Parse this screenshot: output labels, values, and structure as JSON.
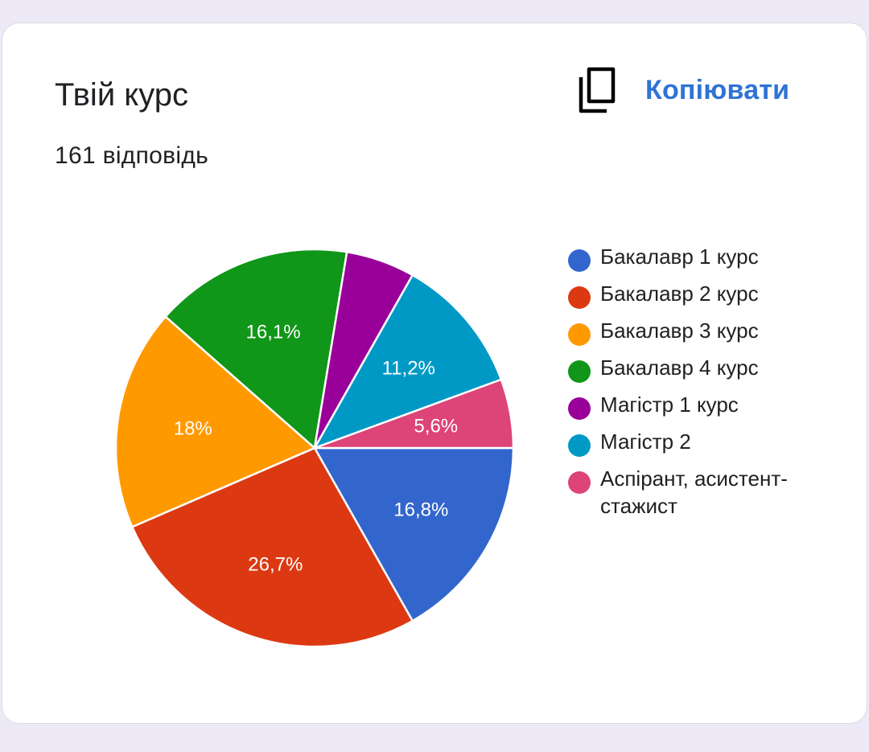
{
  "card": {
    "title": "Твій курс",
    "subtitle": "161 відповідь",
    "copy_label": "Копіювати",
    "copy_icon": "copy-icon"
  },
  "colors": {
    "accent": "#2f73d6",
    "background": "#ede9f7",
    "card": "#ffffff"
  },
  "chart_data": {
    "type": "pie",
    "title": "Твій курс",
    "subtitle": "161 відповідь",
    "legend_position": "right",
    "slices": [
      {
        "label": "Бакалавр 1 курс",
        "value": 16.8,
        "display": "16,8%",
        "color": "#3366cc"
      },
      {
        "label": "Бакалавр 2 курс",
        "value": 26.7,
        "display": "26,7%",
        "color": "#dc3912"
      },
      {
        "label": "Бакалавр 3 курс",
        "value": 18.0,
        "display": "18%",
        "color": "#ff9900"
      },
      {
        "label": "Бакалавр 4 курс",
        "value": 16.1,
        "display": "16,1%",
        "color": "#109618"
      },
      {
        "label": "Магістр 1 курс",
        "value": 5.6,
        "display": "",
        "color": "#990099"
      },
      {
        "label": "Магістр 2",
        "value": 11.2,
        "display": "11,2%",
        "color": "#0099c6"
      },
      {
        "label": "Аспірант, асистент-стажист",
        "value": 5.6,
        "display": "5,6%",
        "color": "#dd4477"
      }
    ]
  }
}
